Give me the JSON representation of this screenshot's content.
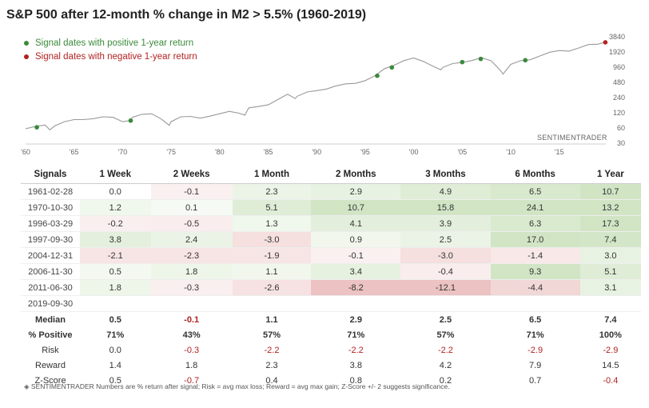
{
  "title": "S&P 500 after 12-month % change in M2 > 5.5% (1960-2019)",
  "legend": [
    {
      "label": "Signal dates with positive 1-year return",
      "color": "#3a8a3a"
    },
    {
      "label": "Signal dates with negative 1-year return",
      "color": "#b22222"
    }
  ],
  "brand": "SENTIMENTRADER",
  "colors": {
    "line": "#999999",
    "positive": "#3a8a3a",
    "negative": "#b22222",
    "good_cell": "#e6f1e0",
    "bad_cell": "#f3dede"
  },
  "chart_data": {
    "type": "line",
    "title": "S&P 500 after 12-month % change in M2 > 5.5% (1960-2019)",
    "xlabel": "",
    "ylabel": "",
    "y_scale": "log",
    "xlim": [
      1960,
      2019.8
    ],
    "ylim": [
      30,
      3840
    ],
    "x_ticks": [
      "'60",
      "'65",
      "'70",
      "'75",
      "'80",
      "'85",
      "'90",
      "'95",
      "'00",
      "'05",
      "'10",
      "'15"
    ],
    "x_tick_values": [
      1960,
      1965,
      1970,
      1975,
      1980,
      1985,
      1990,
      1995,
      2000,
      2005,
      2010,
      2015
    ],
    "y_ticks": [
      "30",
      "60",
      "120",
      "240",
      "480",
      "960",
      "1920",
      "3840"
    ],
    "y_tick_values": [
      30,
      60,
      120,
      240,
      480,
      960,
      1920,
      3840
    ],
    "series": [
      {
        "name": "S&P 500",
        "x": [
          1960,
          1961,
          1962,
          1962.5,
          1963,
          1964,
          1965,
          1966,
          1967,
          1968,
          1969,
          1970,
          1970.8,
          1971,
          1972,
          1973,
          1974,
          1974.8,
          1975,
          1976,
          1977,
          1978,
          1979,
          1980,
          1981,
          1982,
          1982.6,
          1983,
          1984,
          1985,
          1986,
          1987,
          1987.8,
          1988,
          1989,
          1990,
          1991,
          1992,
          1993,
          1994,
          1995,
          1996,
          1997,
          1998,
          1999,
          2000,
          2001,
          2002,
          2002.8,
          2003,
          2004,
          2005,
          2006,
          2007,
          2008,
          2009,
          2009.2,
          2010,
          2011,
          2012,
          2013,
          2014,
          2015,
          2016,
          2017,
          2018,
          2019,
          2019.7
        ],
        "values": [
          58,
          64,
          69,
          55,
          66,
          80,
          88,
          88,
          92,
          100,
          98,
          80,
          84,
          98,
          112,
          115,
          90,
          68,
          80,
          100,
          102,
          94,
          103,
          115,
          128,
          118,
          108,
          150,
          160,
          172,
          220,
          280,
          230,
          255,
          310,
          330,
          355,
          410,
          450,
          460,
          520,
          650,
          900,
          1050,
          1300,
          1460,
          1250,
          1000,
          850,
          950,
          1130,
          1200,
          1300,
          1480,
          1280,
          800,
          700,
          1090,
          1290,
          1350,
          1600,
          1900,
          2050,
          2000,
          2300,
          2700,
          2750,
          3000
        ]
      }
    ],
    "signals": [
      {
        "date": "1961-02-28",
        "x": 1961.16,
        "value": 62,
        "sign": "positive"
      },
      {
        "date": "1970-10-30",
        "x": 1970.83,
        "value": 84,
        "sign": "positive"
      },
      {
        "date": "1996-03-29",
        "x": 1996.24,
        "value": 650,
        "sign": "positive"
      },
      {
        "date": "1997-09-30",
        "x": 1997.75,
        "value": 950,
        "sign": "positive"
      },
      {
        "date": "2004-12-31",
        "x": 2005.0,
        "value": 1210,
        "sign": "positive"
      },
      {
        "date": "2006-11-30",
        "x": 2006.91,
        "value": 1400,
        "sign": "positive"
      },
      {
        "date": "2011-06-30",
        "x": 2011.5,
        "value": 1320,
        "sign": "positive"
      },
      {
        "date": "2019-09-30",
        "x": 2019.75,
        "value": 2980,
        "sign": "negative"
      }
    ]
  },
  "table": {
    "headers": [
      "Signals",
      "1 Week",
      "2 Weeks",
      "1 Month",
      "2 Months",
      "3 Months",
      "6 Months",
      "1 Year"
    ],
    "rows": [
      {
        "date": "1961-02-28",
        "values": [
          "0.0",
          "-0.1",
          "2.3",
          "2.9",
          "4.9",
          "6.5",
          "10.7"
        ]
      },
      {
        "date": "1970-10-30",
        "values": [
          "1.2",
          "0.1",
          "5.1",
          "10.7",
          "15.8",
          "24.1",
          "13.2"
        ]
      },
      {
        "date": "1996-03-29",
        "values": [
          "-0.2",
          "-0.5",
          "1.3",
          "4.1",
          "3.9",
          "6.3",
          "17.3"
        ]
      },
      {
        "date": "1997-09-30",
        "values": [
          "3.8",
          "2.4",
          "-3.0",
          "0.9",
          "2.5",
          "17.0",
          "7.4"
        ]
      },
      {
        "date": "2004-12-31",
        "values": [
          "-2.1",
          "-2.3",
          "-1.9",
          "-0.1",
          "-3.0",
          "-1.4",
          "3.0"
        ]
      },
      {
        "date": "2006-11-30",
        "values": [
          "0.5",
          "1.8",
          "1.1",
          "3.4",
          "-0.4",
          "9.3",
          "5.1"
        ]
      },
      {
        "date": "2011-06-30",
        "values": [
          "1.8",
          "-0.3",
          "-2.6",
          "-8.2",
          "-12.1",
          "-4.4",
          "3.1"
        ]
      },
      {
        "date": "2019-09-30",
        "values": [
          "",
          "",
          "",
          "",
          "",
          "",
          ""
        ]
      }
    ],
    "summary": [
      {
        "label": "Median",
        "values": [
          "0.5",
          "-0.1",
          "1.1",
          "2.9",
          "2.5",
          "6.5",
          "7.4"
        ],
        "bold": true
      },
      {
        "label": "% Positive",
        "values": [
          "71%",
          "43%",
          "57%",
          "71%",
          "57%",
          "71%",
          "100%"
        ],
        "bold": true
      },
      {
        "label": "Risk",
        "values": [
          "0.0",
          "-0.3",
          "-2.2",
          "-2.2",
          "-2.2",
          "-2.9",
          "-2.9"
        ],
        "bold": false
      },
      {
        "label": "Reward",
        "values": [
          "1.4",
          "1.8",
          "2.3",
          "3.8",
          "4.2",
          "7.9",
          "14.5"
        ],
        "bold": false
      },
      {
        "label": "Z-Score",
        "values": [
          "0.5",
          "-0.7",
          "0.4",
          "0.8",
          "0.2",
          "0.7",
          "-0.4"
        ],
        "bold": false
      }
    ]
  },
  "footnote": "SENTIMENTRADER  Numbers are % return after signal; Risk = avg max loss; Reward = avg max gain; Z-Score +/- 2 suggests significance."
}
